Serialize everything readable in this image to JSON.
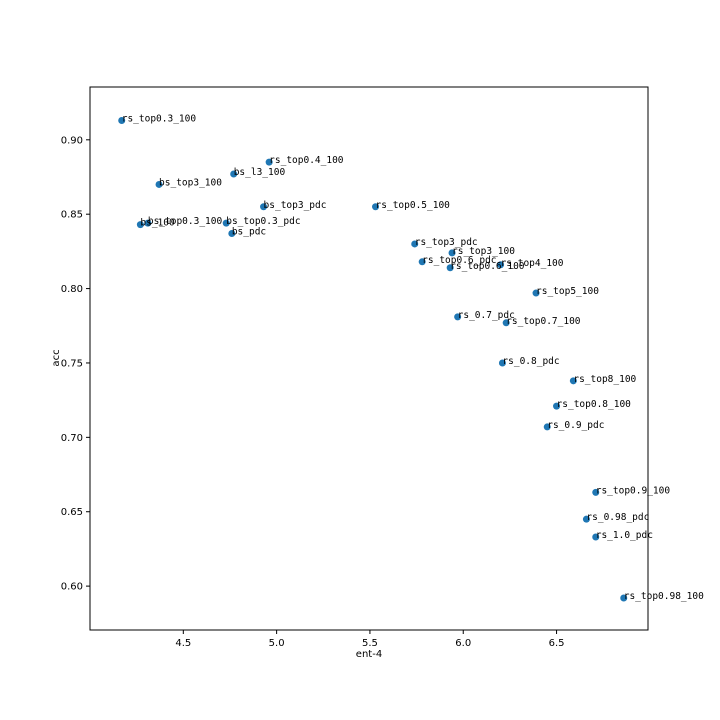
{
  "chart_data": {
    "type": "scatter",
    "title": "",
    "xlabel": "ent-4",
    "ylabel": "acc",
    "xlim": [
      4.0,
      6.99
    ],
    "ylim": [
      0.5705,
      0.9355
    ],
    "xticks": [
      4.5,
      5.0,
      5.5,
      6.0,
      6.5
    ],
    "yticks": [
      0.6,
      0.65,
      0.7,
      0.75,
      0.8,
      0.85,
      0.9
    ],
    "xtick_labels": [
      "4.5",
      "5.0",
      "5.5",
      "6.0",
      "6.5"
    ],
    "ytick_labels": [
      "0.60",
      "0.65",
      "0.70",
      "0.75",
      "0.80",
      "0.85",
      "0.90"
    ],
    "grid": false,
    "point_color": "#1f77b4",
    "points": [
      {
        "label": "rs_top0.3_100",
        "x": 4.17,
        "y": 0.913
      },
      {
        "label": "rs_top0.4_100",
        "x": 4.96,
        "y": 0.885
      },
      {
        "label": "bs_l3_100",
        "x": 4.77,
        "y": 0.877
      },
      {
        "label": "bs_top3_100",
        "x": 4.37,
        "y": 0.87
      },
      {
        "label": "bs_top3_pdc",
        "x": 4.93,
        "y": 0.855
      },
      {
        "label": "rs_top0.5_100",
        "x": 5.53,
        "y": 0.855
      },
      {
        "label": "bs_100",
        "x": 4.27,
        "y": 0.843
      },
      {
        "label": "bs_top0.3_100",
        "x": 4.31,
        "y": 0.844
      },
      {
        "label": "bs_top0.3_pdc",
        "x": 4.73,
        "y": 0.844
      },
      {
        "label": "bs_pdc",
        "x": 4.76,
        "y": 0.837
      },
      {
        "label": "rs_top3_pdc",
        "x": 5.74,
        "y": 0.83
      },
      {
        "label": "rs_top3_100",
        "x": 5.94,
        "y": 0.824
      },
      {
        "label": "rs_top0.6_pdc",
        "x": 5.78,
        "y": 0.818
      },
      {
        "label": "rs_top0.6_100",
        "x": 5.93,
        "y": 0.814
      },
      {
        "label": "rs_top4_100",
        "x": 6.2,
        "y": 0.816
      },
      {
        "label": "rs_top5_100",
        "x": 6.39,
        "y": 0.797
      },
      {
        "label": "rs_0.7_pdc",
        "x": 5.97,
        "y": 0.781
      },
      {
        "label": "rs_top0.7_100",
        "x": 6.23,
        "y": 0.777
      },
      {
        "label": "rs_0.8_pdc",
        "x": 6.21,
        "y": 0.75
      },
      {
        "label": "rs_top8_100",
        "x": 6.59,
        "y": 0.738
      },
      {
        "label": "rs_top0.8_100",
        "x": 6.5,
        "y": 0.721
      },
      {
        "label": "rs_0.9_pdc",
        "x": 6.45,
        "y": 0.707
      },
      {
        "label": "rs_top0.9_100",
        "x": 6.71,
        "y": 0.663
      },
      {
        "label": "rs_0.98_pdc",
        "x": 6.66,
        "y": 0.645
      },
      {
        "label": "rs_1.0_pdc",
        "x": 6.71,
        "y": 0.633
      },
      {
        "label": "rs_top0.98_100",
        "x": 6.86,
        "y": 0.592
      }
    ]
  }
}
